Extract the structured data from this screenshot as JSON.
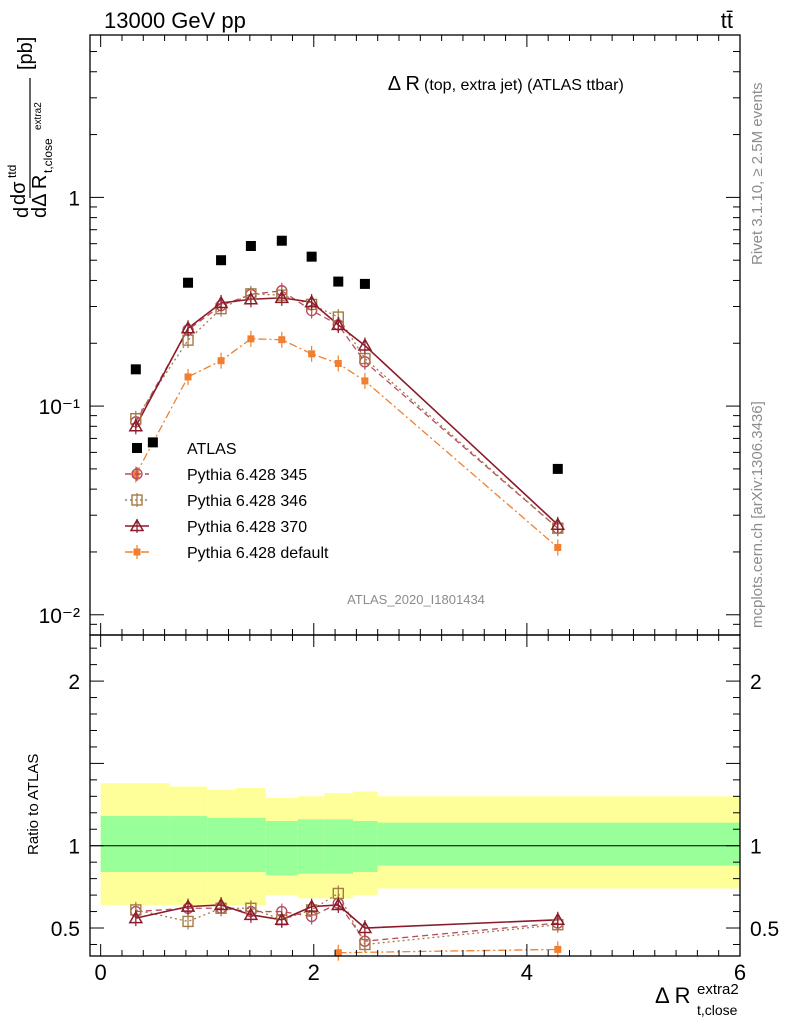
{
  "header": {
    "energy_label": "13000 GeV pp",
    "process_label": "tt̄"
  },
  "side_labels": {
    "rivet": "Rivet 3.1.10, ≥ 2.5M events",
    "mcplots": "mcplots.cern.ch [arXiv:1306.3436]"
  },
  "chart_data": [
    {
      "type": "scatter",
      "panel": "main",
      "title_main": "Δ R",
      "title_sub": "(top, extra jet) (ATLAS ttbar)",
      "ylabel": "dσ^{ttd} / dΔ R_{t,close}^{extra2} [pb]",
      "yscale": "log",
      "ylim": [
        0.008,
        6
      ],
      "xlim": [
        -0.1,
        6.0
      ],
      "ytick_labels": [
        "1",
        "10⁻¹",
        "10⁻²"
      ],
      "analysis_label": "ATLAS_2020_I1801434",
      "legend_position": "lower-left",
      "series": [
        {
          "name": "ATLAS",
          "color": "#000000",
          "marker": "filled-square",
          "x": [
            0.33,
            0.49,
            0.82,
            1.13,
            1.41,
            1.7,
            1.98,
            2.23,
            2.48,
            4.29
          ],
          "y": [
            0.15,
            0.067,
            0.39,
            0.5,
            0.585,
            0.62,
            0.52,
            0.395,
            0.385,
            0.05
          ]
        },
        {
          "name": "Pythia 6.428 345",
          "color": "#b84c60",
          "marker": "open-circle",
          "line": "dashed",
          "x": [
            0.33,
            0.82,
            1.13,
            1.41,
            1.7,
            1.98,
            2.23,
            2.48,
            4.29
          ],
          "y": [
            0.084,
            0.232,
            0.303,
            0.343,
            0.357,
            0.287,
            0.245,
            0.163,
            0.026
          ]
        },
        {
          "name": "Pythia 6.428 346",
          "color": "#a47a45",
          "marker": "open-square",
          "line": "dotted",
          "x": [
            0.33,
            0.82,
            1.13,
            1.41,
            1.7,
            1.98,
            2.23,
            2.48,
            4.29
          ],
          "y": [
            0.087,
            0.207,
            0.293,
            0.345,
            0.34,
            0.307,
            0.267,
            0.169,
            0.026
          ]
        },
        {
          "name": "Pythia 6.428 370",
          "color": "#8b1a2b",
          "marker": "open-triangle",
          "line": "solid",
          "x": [
            0.33,
            0.82,
            1.13,
            1.41,
            1.7,
            1.98,
            2.23,
            2.48,
            4.29
          ],
          "y": [
            0.08,
            0.236,
            0.312,
            0.325,
            0.33,
            0.315,
            0.245,
            0.195,
            0.027
          ]
        },
        {
          "name": "Pythia 6.428 default",
          "color": "#f08030",
          "marker": "filled-square",
          "line": "dashdot",
          "x": [
            0.33,
            0.82,
            1.13,
            1.41,
            1.7,
            1.98,
            2.23,
            2.48,
            4.29
          ],
          "y": [
            0.047,
            0.138,
            0.165,
            0.21,
            0.208,
            0.178,
            0.16,
            0.132,
            0.021
          ]
        }
      ]
    },
    {
      "type": "scatter",
      "panel": "ratio",
      "ylabel": "Ratio to ATLAS",
      "xlabel": "Δ R_{t,close}^{extra2}",
      "ylim": [
        0.33,
        2.28
      ],
      "xlim": [
        -0.1,
        6.0
      ],
      "x_ticks": [
        0,
        2,
        4,
        6
      ],
      "y_ticks": [
        0.5,
        1,
        2
      ],
      "bands": {
        "edges": [
          0.0,
          0.65,
          1.0,
          1.27,
          1.55,
          1.85,
          2.1,
          2.37,
          2.6,
          6.0
        ],
        "inner": {
          "color": "#99ff99",
          "lo": [
            0.84,
            0.84,
            0.84,
            0.84,
            0.82,
            0.83,
            0.83,
            0.84,
            0.88
          ],
          "hi": [
            1.18,
            1.18,
            1.17,
            1.17,
            1.15,
            1.16,
            1.16,
            1.15,
            1.14
          ]
        },
        "outer": {
          "color": "#ffff99",
          "lo": [
            0.64,
            0.64,
            0.64,
            0.64,
            0.7,
            0.68,
            0.68,
            0.7,
            0.74
          ],
          "hi": [
            1.38,
            1.36,
            1.34,
            1.35,
            1.29,
            1.3,
            1.32,
            1.33,
            1.3
          ]
        }
      },
      "series": [
        {
          "name": "Pythia 6.428 345",
          "color": "#b84c60",
          "marker": "open-circle",
          "line": "dashed",
          "x": [
            0.33,
            0.82,
            1.13,
            1.41,
            1.7,
            1.98,
            2.23,
            2.48,
            4.29
          ],
          "y": [
            0.6,
            0.62,
            0.62,
            0.6,
            0.6,
            0.57,
            0.65,
            0.42,
            0.53
          ]
        },
        {
          "name": "Pythia 6.428 346",
          "color": "#a47a45",
          "marker": "open-square",
          "line": "dotted",
          "x": [
            0.33,
            0.82,
            1.13,
            1.41,
            1.7,
            1.98,
            2.23,
            2.48,
            4.29
          ],
          "y": [
            0.61,
            0.54,
            0.62,
            0.62,
            0.55,
            0.61,
            0.71,
            0.4,
            0.52
          ]
        },
        {
          "name": "Pythia 6.428 370",
          "color": "#8b1a2b",
          "marker": "open-triangle",
          "line": "solid",
          "x": [
            0.33,
            0.82,
            1.13,
            1.41,
            1.7,
            1.98,
            2.23,
            2.48,
            4.29
          ],
          "y": [
            0.56,
            0.63,
            0.64,
            0.58,
            0.55,
            0.63,
            0.64,
            0.5,
            0.55
          ]
        },
        {
          "name": "Pythia 6.428 default",
          "color": "#f08030",
          "marker": "filled-square",
          "line": "dashdot",
          "x": [
            2.23,
            4.29
          ],
          "y": [
            0.35,
            0.37
          ]
        }
      ]
    }
  ]
}
